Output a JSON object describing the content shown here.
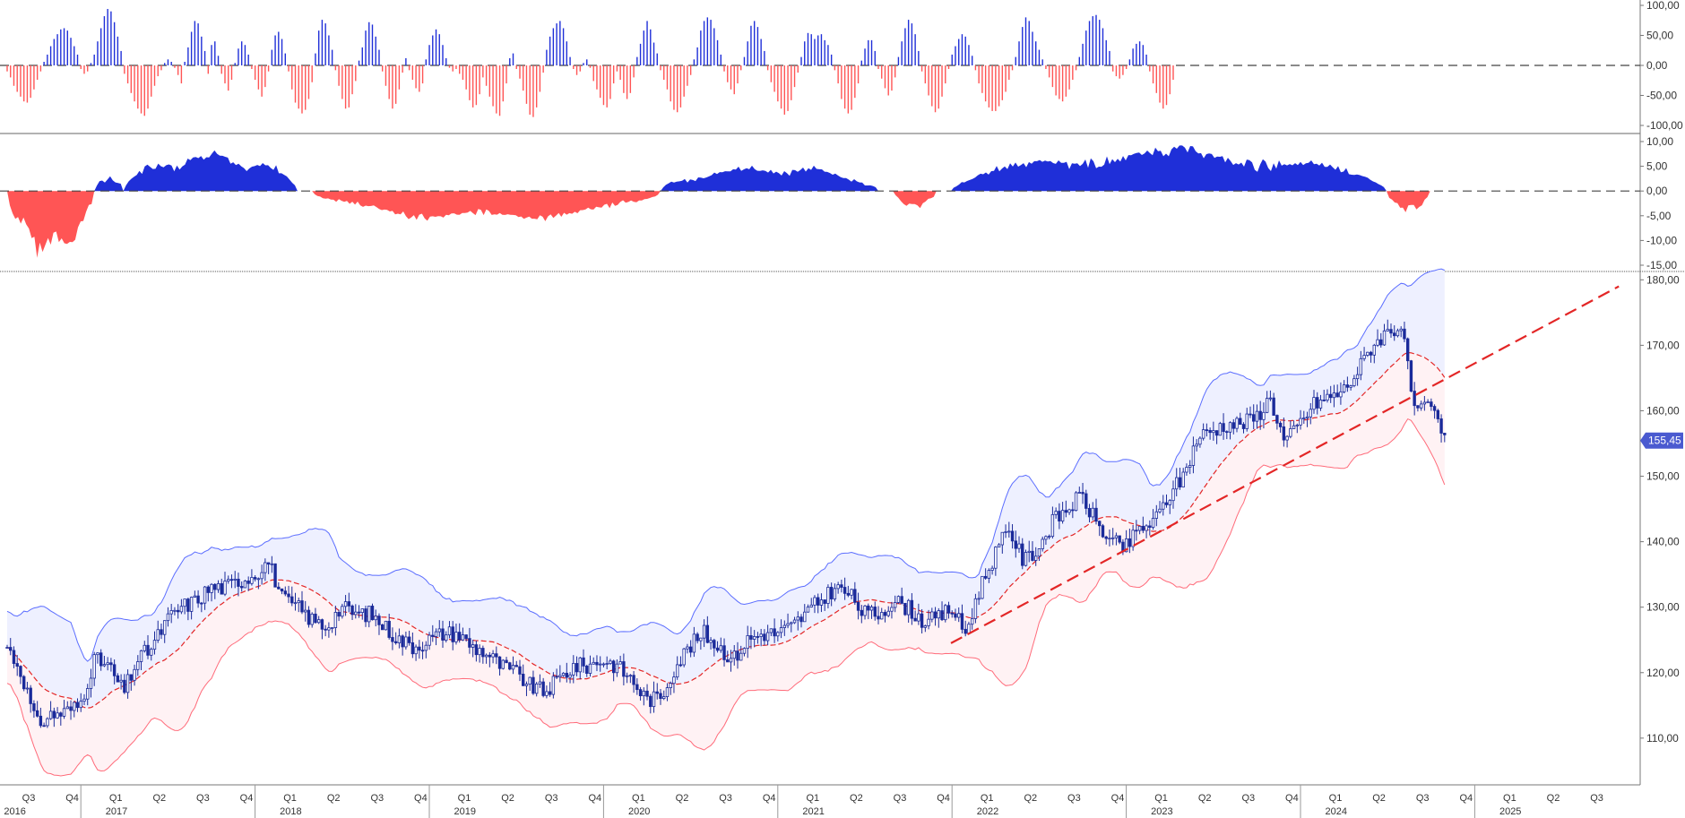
{
  "colors": {
    "positive": "#1f2fd8",
    "negative": "#ff5555",
    "band_upper_fill": "#eef0ff",
    "band_lower_fill": "#fff2f4",
    "band_upper_line": "#5b6dff",
    "band_lower_line": "#ff6b7a",
    "ma_line": "#e32626",
    "trend_line": "#e32626",
    "candles": "#1a2a9a",
    "price_badge": "#4a5ad0"
  },
  "chart_data": [
    {
      "type": "bar",
      "panel": "oscillator-histogram",
      "ylim": [
        -100,
        100
      ],
      "y_ticks": [
        "100,00",
        "50,00",
        "0,00",
        "-50,00",
        "-100,00"
      ],
      "zero_line": 0,
      "series": [
        {
          "x_start": "2016-07",
          "step": "week",
          "values": [
            -10,
            -20,
            -34,
            -44,
            -52,
            -60,
            -62,
            -54,
            -40,
            -24,
            -10,
            6,
            18,
            32,
            44,
            52,
            60,
            62,
            58,
            46,
            32,
            18,
            -6,
            -14,
            -10,
            4,
            18,
            40,
            62,
            82,
            94,
            90,
            72,
            48,
            24,
            -14,
            -30,
            -46,
            -60,
            -72,
            -80,
            -84,
            -72,
            -52,
            -34,
            -18,
            -8,
            4,
            10,
            6,
            -4,
            -16,
            -30,
            6,
            30,
            56,
            74,
            70,
            48,
            24,
            -14,
            34,
            40,
            16,
            -14,
            -30,
            -42,
            -24,
            4,
            28,
            40,
            34,
            18,
            -6,
            -24,
            -40,
            -52,
            -36,
            -10,
            26,
            50,
            56,
            44,
            20,
            -10,
            -40,
            -62,
            -72,
            -80,
            -74,
            -56,
            -28,
            20,
            58,
            76,
            70,
            50,
            26,
            -8,
            -34,
            -56,
            -72,
            -70,
            -48,
            -26,
            8,
            30,
            58,
            72,
            68,
            48,
            26,
            -10,
            -34,
            -56,
            -72,
            -64,
            -40,
            -12,
            12,
            -8,
            -24,
            -38,
            -44,
            -30,
            10,
            34,
            50,
            60,
            52,
            34,
            12,
            -4,
            -10,
            -6,
            -14,
            -24,
            -40,
            -58,
            -70,
            -66,
            -48,
            -20,
            -34,
            -52,
            -68,
            -80,
            -84,
            -60,
            -30,
            12,
            20,
            -6,
            -22,
            -42,
            -64,
            -82,
            -86,
            -70,
            -44,
            -12,
            26,
            48,
            62,
            70,
            74,
            62,
            40,
            14,
            -6,
            -16,
            -10,
            4,
            10,
            -4,
            -26,
            -40,
            -54,
            -66,
            -70,
            -56,
            -30,
            -10,
            -24,
            -46,
            -56,
            -46,
            -20,
            14,
            36,
            58,
            74,
            60,
            38,
            20,
            -8,
            -24,
            -40,
            -60,
            -74,
            -78,
            -70,
            -52,
            -34,
            -16,
            10,
            30,
            58,
            74,
            80,
            76,
            62,
            42,
            18,
            -10,
            -28,
            -40,
            -48,
            -30,
            -8,
            14,
            40,
            66,
            74,
            64,
            44,
            24,
            -8,
            -28,
            -44,
            -60,
            -72,
            -82,
            -76,
            -58,
            -36,
            -12,
            14,
            40,
            54,
            52,
            44,
            50,
            52,
            42,
            34,
            18,
            -8,
            -30,
            -56,
            -72,
            -80,
            -74,
            -54,
            -30,
            8,
            28,
            42,
            42,
            24,
            -6,
            -22,
            -38,
            -50,
            -42,
            -20,
            14,
            40,
            62,
            76,
            70,
            52,
            24,
            -10,
            -30,
            -50,
            -68,
            -78,
            -72,
            -52,
            -30,
            -6,
            18,
            32,
            44,
            52,
            48,
            34,
            16,
            -8,
            -30,
            -46,
            -60,
            -70,
            -76,
            -76,
            -68,
            -58,
            -44,
            -24,
            -8,
            14,
            40,
            64,
            80,
            74,
            56,
            40,
            26,
            10,
            -6,
            -20,
            -36,
            -50,
            -56,
            -60,
            -52,
            -40,
            -24,
            -8,
            14,
            36,
            58,
            74,
            82,
            84,
            76,
            62,
            42,
            24,
            -10,
            -18,
            -22,
            -16,
            -6,
            10,
            28,
            36,
            40,
            34,
            18,
            -10,
            -30,
            -46,
            -62,
            -72,
            -66,
            -48,
            -24
          ]
        }
      ]
    },
    {
      "type": "area",
      "panel": "momentum-area",
      "ylim": [
        -15,
        10
      ],
      "y_ticks": [
        "10,00",
        "5,00",
        "0,00",
        "-5,00",
        "-10,00",
        "-15,00"
      ],
      "zero_line": 0,
      "segments": [
        {
          "x_start": "2016-07",
          "x_end": "2017-01",
          "sign": "negative",
          "min": -13.5
        },
        {
          "x_start": "2017-01",
          "x_end": "2017-03",
          "sign": "positive",
          "max": 3
        },
        {
          "x_start": "2017-03",
          "x_end": "2018-03",
          "sign": "positive",
          "max": 8.5
        },
        {
          "x_start": "2018-04",
          "x_end": "2020-04",
          "sign": "negative",
          "min": -6.5
        },
        {
          "x_start": "2020-04",
          "x_end": "2021-07",
          "sign": "positive",
          "max": 5.6
        },
        {
          "x_start": "2021-08",
          "x_end": "2021-11",
          "sign": "negative",
          "min": -3.5
        },
        {
          "x_start": "2021-12",
          "x_end": "2024-06",
          "sign": "positive",
          "max": 9.2
        },
        {
          "x_start": "2024-06",
          "x_end": "2024-09",
          "sign": "negative",
          "min": -4.5
        }
      ]
    },
    {
      "type": "candlestick",
      "panel": "price",
      "ylim": [
        103,
        181
      ],
      "y_ticks": [
        "110,00",
        "120,00",
        "130,00",
        "140,00",
        "150,00",
        "160,00",
        "170,00",
        "180,00"
      ],
      "last_price": 155.45,
      "last_price_label": "155,45",
      "close_anchors": [
        [
          "2016-07",
          124
        ],
        [
          "2016-08",
          120
        ],
        [
          "2016-09",
          112
        ],
        [
          "2016-10",
          113.5
        ],
        [
          "2016-11",
          114
        ],
        [
          "2016-12",
          115
        ],
        [
          "2017-01",
          122
        ],
        [
          "2017-02",
          121
        ],
        [
          "2017-03",
          117
        ],
        [
          "2017-04",
          122
        ],
        [
          "2017-05",
          124
        ],
        [
          "2017-06",
          128
        ],
        [
          "2017-07",
          130
        ],
        [
          "2017-08",
          131
        ],
        [
          "2017-09",
          133
        ],
        [
          "2017-10",
          133
        ],
        [
          "2017-11",
          134
        ],
        [
          "2017-12",
          135
        ],
        [
          "2018-01",
          137
        ],
        [
          "2018-02",
          131
        ],
        [
          "2018-03",
          130
        ],
        [
          "2018-04",
          128
        ],
        [
          "2018-05",
          127
        ],
        [
          "2018-06",
          130
        ],
        [
          "2018-07",
          129
        ],
        [
          "2018-08",
          129
        ],
        [
          "2018-09",
          127
        ],
        [
          "2018-10",
          125
        ],
        [
          "2018-11",
          124
        ],
        [
          "2018-12",
          125
        ],
        [
          "2019-01",
          126
        ],
        [
          "2019-02",
          126
        ],
        [
          "2019-03",
          124
        ],
        [
          "2019-04",
          123
        ],
        [
          "2019-05",
          121
        ],
        [
          "2019-06",
          120
        ],
        [
          "2019-07",
          118
        ],
        [
          "2019-08",
          117
        ],
        [
          "2019-09",
          119
        ],
        [
          "2019-10",
          121
        ],
        [
          "2019-11",
          121
        ],
        [
          "2019-12",
          122
        ],
        [
          "2020-01",
          121
        ],
        [
          "2020-02",
          119
        ],
        [
          "2020-03",
          116
        ],
        [
          "2020-04",
          116
        ],
        [
          "2020-05",
          121
        ],
        [
          "2020-06",
          124
        ],
        [
          "2020-07",
          126
        ],
        [
          "2020-08",
          124
        ],
        [
          "2020-09",
          122
        ],
        [
          "2020-10",
          125
        ],
        [
          "2020-11",
          126
        ],
        [
          "2020-12",
          126
        ],
        [
          "2021-01",
          127
        ],
        [
          "2021-02",
          129
        ],
        [
          "2021-03",
          131
        ],
        [
          "2021-04",
          133
        ],
        [
          "2021-05",
          132
        ],
        [
          "2021-06",
          129
        ],
        [
          "2021-07",
          129
        ],
        [
          "2021-08",
          131
        ],
        [
          "2021-09",
          130
        ],
        [
          "2021-10",
          128
        ],
        [
          "2021-11",
          128
        ],
        [
          "2021-12",
          130
        ],
        [
          "2022-01",
          126
        ],
        [
          "2022-02",
          133
        ],
        [
          "2022-03",
          138
        ],
        [
          "2022-04",
          142
        ],
        [
          "2022-05",
          137
        ],
        [
          "2022-06",
          139
        ],
        [
          "2022-07",
          143
        ],
        [
          "2022-08",
          145
        ],
        [
          "2022-09",
          147
        ],
        [
          "2022-10",
          143
        ],
        [
          "2022-11",
          140
        ],
        [
          "2022-12",
          139
        ],
        [
          "2023-01",
          142
        ],
        [
          "2023-02",
          143
        ],
        [
          "2023-03",
          147
        ],
        [
          "2023-04",
          150
        ],
        [
          "2023-05",
          156
        ],
        [
          "2023-06",
          157
        ],
        [
          "2023-07",
          158
        ],
        [
          "2023-08",
          158
        ],
        [
          "2023-09",
          159
        ],
        [
          "2023-10",
          162
        ],
        [
          "2023-11",
          155
        ],
        [
          "2023-12",
          158
        ],
        [
          "2024-01",
          161
        ],
        [
          "2024-02",
          162
        ],
        [
          "2024-03",
          163
        ],
        [
          "2024-04",
          166
        ],
        [
          "2024-05",
          170
        ],
        [
          "2024-06",
          172
        ],
        [
          "2024-07",
          173
        ],
        [
          "2024-08",
          159
        ],
        [
          "2024-09",
          161
        ],
        [
          "2024-10",
          155.45
        ]
      ],
      "trend_line": {
        "from": [
          "2021-12",
          124.5
        ],
        "to": [
          "2025-10",
          179
        ]
      }
    }
  ],
  "x_axis": {
    "quarters": [
      {
        "label": "Q3",
        "date": "2016-07"
      },
      {
        "label": "Q4",
        "date": "2016-10"
      },
      {
        "label": "Q1",
        "date": "2017-01"
      },
      {
        "label": "Q2",
        "date": "2017-04"
      },
      {
        "label": "Q3",
        "date": "2017-07"
      },
      {
        "label": "Q4",
        "date": "2017-10"
      },
      {
        "label": "Q1",
        "date": "2018-01"
      },
      {
        "label": "Q2",
        "date": "2018-04"
      },
      {
        "label": "Q3",
        "date": "2018-07"
      },
      {
        "label": "Q4",
        "date": "2018-10"
      },
      {
        "label": "Q1",
        "date": "2019-01"
      },
      {
        "label": "Q2",
        "date": "2019-04"
      },
      {
        "label": "Q3",
        "date": "2019-07"
      },
      {
        "label": "Q4",
        "date": "2019-10"
      },
      {
        "label": "Q1",
        "date": "2020-01"
      },
      {
        "label": "Q2",
        "date": "2020-04"
      },
      {
        "label": "Q3",
        "date": "2020-07"
      },
      {
        "label": "Q4",
        "date": "2020-10"
      },
      {
        "label": "Q1",
        "date": "2021-01"
      },
      {
        "label": "Q2",
        "date": "2021-04"
      },
      {
        "label": "Q3",
        "date": "2021-07"
      },
      {
        "label": "Q4",
        "date": "2021-10"
      },
      {
        "label": "Q1",
        "date": "2022-01"
      },
      {
        "label": "Q2",
        "date": "2022-04"
      },
      {
        "label": "Q3",
        "date": "2022-07"
      },
      {
        "label": "Q4",
        "date": "2022-10"
      },
      {
        "label": "Q1",
        "date": "2023-01"
      },
      {
        "label": "Q2",
        "date": "2023-04"
      },
      {
        "label": "Q3",
        "date": "2023-07"
      },
      {
        "label": "Q4",
        "date": "2023-10"
      },
      {
        "label": "Q1",
        "date": "2024-01"
      },
      {
        "label": "Q2",
        "date": "2024-04"
      },
      {
        "label": "Q3",
        "date": "2024-07"
      },
      {
        "label": "Q4",
        "date": "2024-10"
      },
      {
        "label": "Q1",
        "date": "2025-01"
      },
      {
        "label": "Q2",
        "date": "2025-04"
      },
      {
        "label": "Q3",
        "date": "2025-07"
      }
    ],
    "years": [
      {
        "label": "2016",
        "date": "2016-10"
      },
      {
        "label": "2017",
        "date": "2017-05"
      },
      {
        "label": "2018",
        "date": "2018-05"
      },
      {
        "label": "2019",
        "date": "2019-05"
      },
      {
        "label": "2020",
        "date": "2020-05"
      },
      {
        "label": "2021",
        "date": "2021-05"
      },
      {
        "label": "2022",
        "date": "2022-05"
      },
      {
        "label": "2023",
        "date": "2023-05"
      },
      {
        "label": "2024",
        "date": "2024-05"
      },
      {
        "label": "2025",
        "date": "2025-05"
      }
    ],
    "year_dividers": [
      "2017-01",
      "2018-01",
      "2019-01",
      "2020-01",
      "2021-01",
      "2022-01",
      "2023-01",
      "2024-01",
      "2025-01"
    ]
  }
}
